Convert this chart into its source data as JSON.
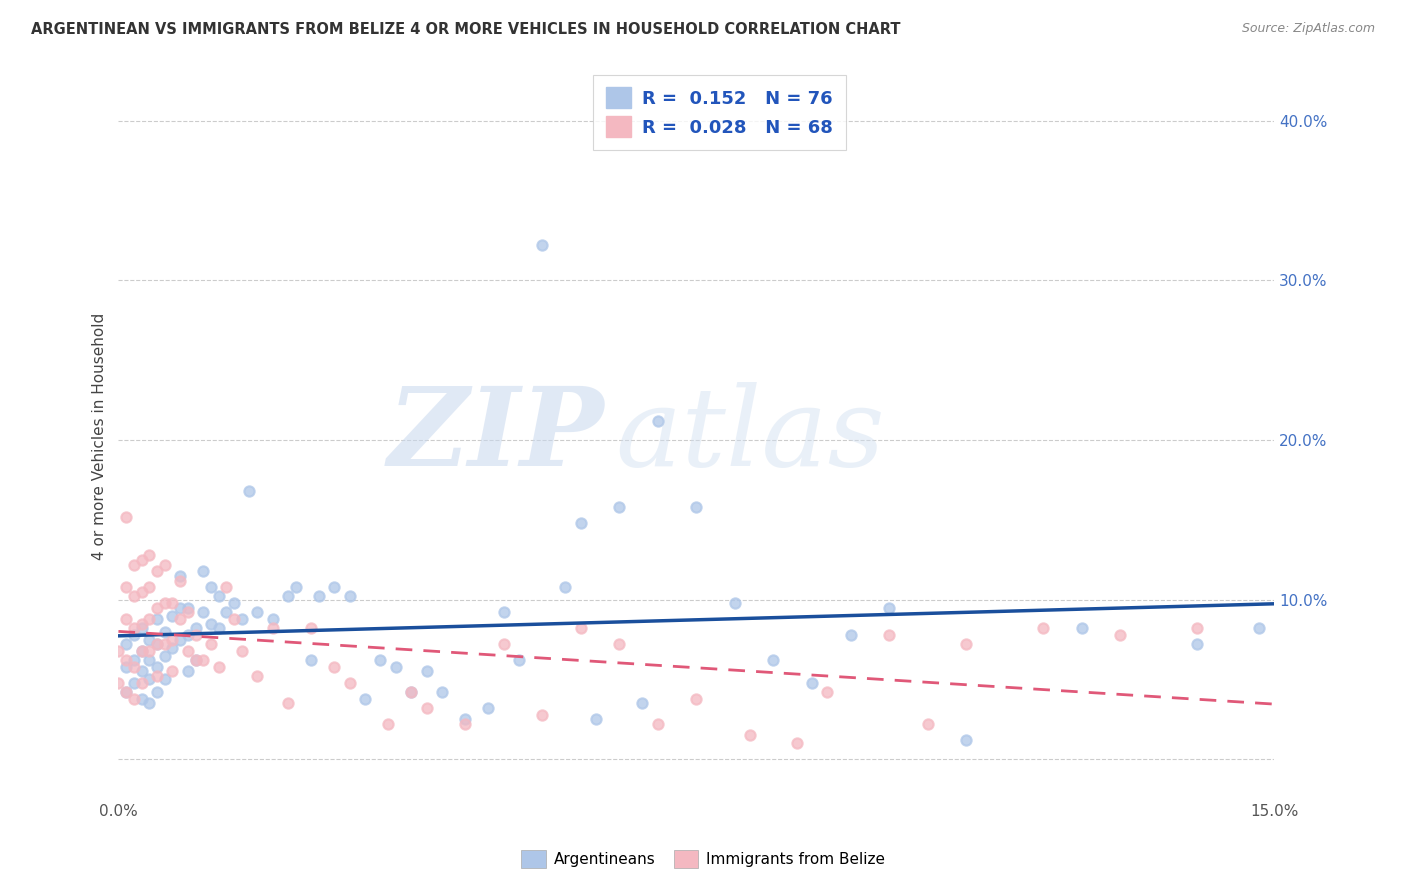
{
  "title": "ARGENTINEAN VS IMMIGRANTS FROM BELIZE 4 OR MORE VEHICLES IN HOUSEHOLD CORRELATION CHART",
  "source": "Source: ZipAtlas.com",
  "ylabel": "4 or more Vehicles in Household",
  "yaxis_tick_vals": [
    0.0,
    0.1,
    0.2,
    0.3,
    0.4
  ],
  "yaxis_tick_labels": [
    "",
    "10.0%",
    "20.0%",
    "30.0%",
    "40.0%"
  ],
  "xlim": [
    0,
    0.15
  ],
  "ylim": [
    -0.025,
    0.43
  ],
  "r_argentinean": 0.152,
  "n_argentinean": 76,
  "r_belize": 0.028,
  "n_belize": 68,
  "color_argentinean": "#aec6e8",
  "color_belize": "#f4b8c1",
  "line_color_argentinean": "#1a4f9c",
  "line_color_belize": "#e05878",
  "legend_label_argentinean": "Argentineans",
  "legend_label_belize": "Immigrants from Belize",
  "watermark_zip": "ZIP",
  "watermark_atlas": "atlas",
  "background_color": "#ffffff",
  "grid_color": "#cccccc",
  "scatter_argentinean_x": [
    0.001,
    0.001,
    0.001,
    0.002,
    0.002,
    0.002,
    0.003,
    0.003,
    0.003,
    0.003,
    0.004,
    0.004,
    0.004,
    0.004,
    0.005,
    0.005,
    0.005,
    0.005,
    0.006,
    0.006,
    0.006,
    0.007,
    0.007,
    0.008,
    0.008,
    0.008,
    0.009,
    0.009,
    0.009,
    0.01,
    0.01,
    0.011,
    0.011,
    0.012,
    0.012,
    0.013,
    0.013,
    0.014,
    0.015,
    0.016,
    0.017,
    0.018,
    0.02,
    0.022,
    0.023,
    0.025,
    0.026,
    0.028,
    0.03,
    0.032,
    0.034,
    0.036,
    0.038,
    0.04,
    0.042,
    0.045,
    0.048,
    0.05,
    0.052,
    0.055,
    0.058,
    0.06,
    0.062,
    0.065,
    0.068,
    0.07,
    0.075,
    0.08,
    0.085,
    0.09,
    0.095,
    0.1,
    0.11,
    0.125,
    0.14,
    0.148
  ],
  "scatter_argentinean_y": [
    0.072,
    0.058,
    0.042,
    0.078,
    0.062,
    0.048,
    0.082,
    0.068,
    0.055,
    0.038,
    0.075,
    0.062,
    0.05,
    0.035,
    0.088,
    0.072,
    0.058,
    0.042,
    0.08,
    0.065,
    0.05,
    0.09,
    0.07,
    0.115,
    0.095,
    0.075,
    0.095,
    0.078,
    0.055,
    0.082,
    0.062,
    0.118,
    0.092,
    0.108,
    0.085,
    0.102,
    0.082,
    0.092,
    0.098,
    0.088,
    0.168,
    0.092,
    0.088,
    0.102,
    0.108,
    0.062,
    0.102,
    0.108,
    0.102,
    0.038,
    0.062,
    0.058,
    0.042,
    0.055,
    0.042,
    0.025,
    0.032,
    0.092,
    0.062,
    0.322,
    0.108,
    0.148,
    0.025,
    0.158,
    0.035,
    0.212,
    0.158,
    0.098,
    0.062,
    0.048,
    0.078,
    0.095,
    0.012,
    0.082,
    0.072,
    0.082
  ],
  "scatter_belize_x": [
    0.0,
    0.0,
    0.001,
    0.001,
    0.001,
    0.001,
    0.001,
    0.002,
    0.002,
    0.002,
    0.002,
    0.002,
    0.003,
    0.003,
    0.003,
    0.003,
    0.003,
    0.004,
    0.004,
    0.004,
    0.004,
    0.005,
    0.005,
    0.005,
    0.005,
    0.006,
    0.006,
    0.006,
    0.007,
    0.007,
    0.007,
    0.008,
    0.008,
    0.009,
    0.009,
    0.01,
    0.01,
    0.011,
    0.012,
    0.013,
    0.014,
    0.015,
    0.016,
    0.018,
    0.02,
    0.022,
    0.025,
    0.028,
    0.03,
    0.035,
    0.038,
    0.04,
    0.045,
    0.05,
    0.055,
    0.06,
    0.065,
    0.07,
    0.075,
    0.082,
    0.088,
    0.092,
    0.1,
    0.105,
    0.11,
    0.12,
    0.13,
    0.14
  ],
  "scatter_belize_y": [
    0.068,
    0.048,
    0.152,
    0.108,
    0.088,
    0.062,
    0.042,
    0.122,
    0.102,
    0.082,
    0.058,
    0.038,
    0.125,
    0.105,
    0.085,
    0.068,
    0.048,
    0.128,
    0.108,
    0.088,
    0.068,
    0.118,
    0.095,
    0.072,
    0.052,
    0.122,
    0.098,
    0.072,
    0.098,
    0.075,
    0.055,
    0.112,
    0.088,
    0.092,
    0.068,
    0.078,
    0.062,
    0.062,
    0.072,
    0.058,
    0.108,
    0.088,
    0.068,
    0.052,
    0.082,
    0.035,
    0.082,
    0.058,
    0.048,
    0.022,
    0.042,
    0.032,
    0.022,
    0.072,
    0.028,
    0.082,
    0.072,
    0.022,
    0.038,
    0.015,
    0.01,
    0.042,
    0.078,
    0.022,
    0.072,
    0.082,
    0.078,
    0.082
  ]
}
